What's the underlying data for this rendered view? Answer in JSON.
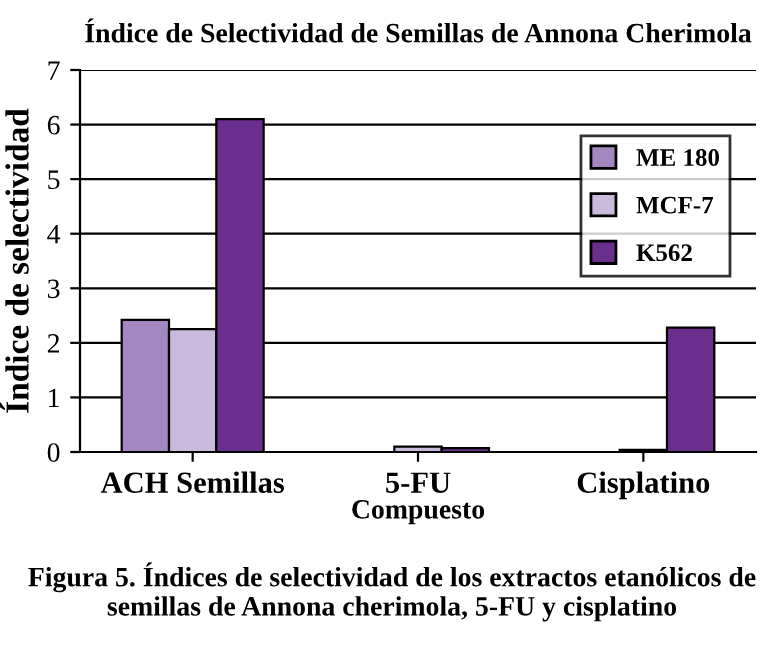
{
  "chart_data": {
    "type": "bar",
    "title": "Índice de Selectividad de Semillas de Annona Cherimola",
    "xlabel": "Compuesto",
    "ylabel": "Índice de selectividad",
    "categories": [
      "ACH Semillas",
      "5-FU",
      "Cisplatino"
    ],
    "series": [
      {
        "name": "ME 180",
        "color": "#a487c0",
        "values": [
          2.42,
          null,
          null
        ]
      },
      {
        "name": "MCF-7",
        "color": "#c9b9dc",
        "values": [
          2.25,
          0.1,
          0.04
        ]
      },
      {
        "name": "K562",
        "color": "#6a2e8c",
        "values": [
          6.1,
          0.07,
          2.28
        ]
      }
    ],
    "ylim": [
      0,
      7
    ],
    "yticks": [
      0,
      1,
      2,
      3,
      4,
      5,
      6,
      7
    ],
    "grid": "y",
    "legend": "top right",
    "annotations": [
      "Figura 5. Índices de selectividad de los extractos etanólicos de semillas de Annona cherimola, 5-FU y cisplatino"
    ]
  }
}
